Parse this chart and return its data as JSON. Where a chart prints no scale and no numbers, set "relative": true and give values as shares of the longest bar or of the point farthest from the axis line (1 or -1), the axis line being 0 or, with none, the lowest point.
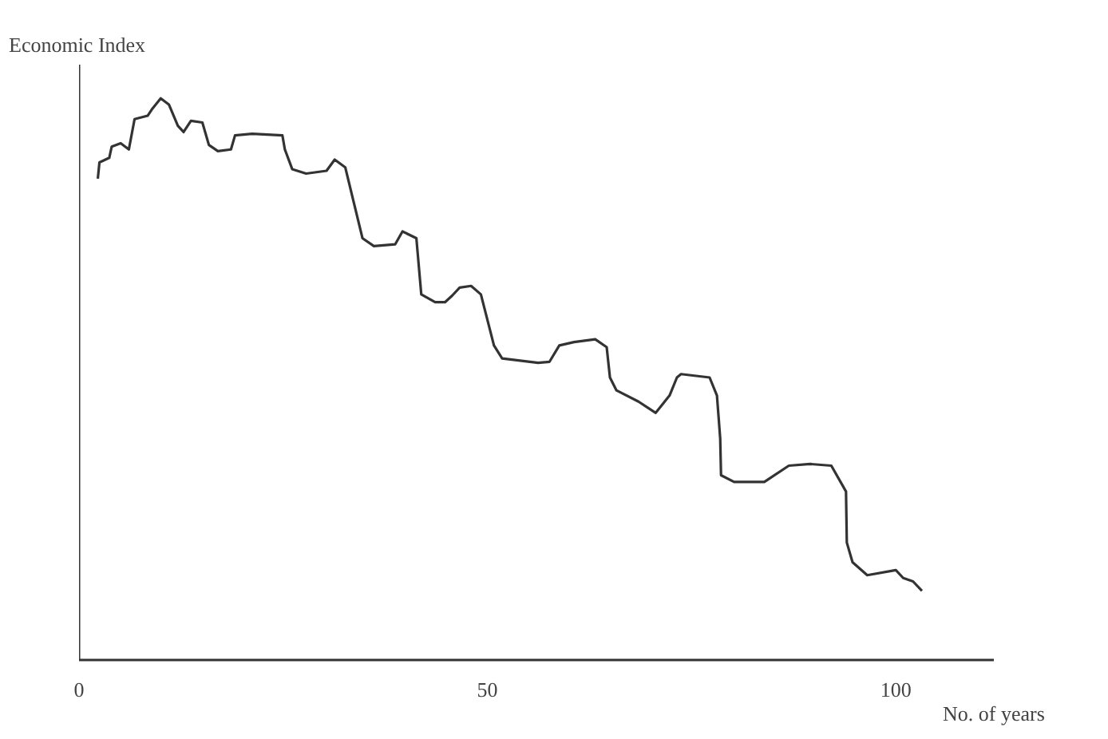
{
  "chart_data": {
    "type": "line",
    "relative": true,
    "xlabel": "No. of years",
    "ylabel": "Economic Index",
    "xlim": [
      0,
      112
    ],
    "xticks": [
      0,
      50,
      100
    ],
    "grid": false,
    "series": [
      {
        "color": "#333333",
        "x": [
          2.3,
          2.5,
          3.7,
          4.0,
          5.1,
          6.1,
          6.8,
          8.4,
          8.9,
          10.0,
          11.0,
          12.1,
          12.8,
          13.7,
          15.1,
          15.9,
          17.0,
          18.6,
          19.1,
          21.2,
          24.9,
          25.2,
          26.1,
          27.8,
          30.3,
          31.3,
          32.6,
          33.5,
          34.7,
          36.1,
          38.7,
          39.6,
          41.3,
          41.9,
          43.6,
          44.8,
          45.7,
          46.6,
          48.0,
          49.2,
          50.8,
          51.8,
          56.2,
          57.6,
          58.8,
          60.6,
          63.2,
          64.6,
          65.0,
          65.8,
          68.5,
          70.6,
          72.3,
          73.2,
          73.7,
          77.2,
          78.1,
          78.5,
          78.6,
          80.2,
          83.9,
          86.9,
          89.5,
          92.1,
          93.9,
          94.0,
          94.7,
          96.5,
          100.0,
          100.9,
          102.1,
          103.2
        ],
        "values": [
          0.857,
          0.886,
          0.894,
          0.914,
          0.92,
          0.909,
          0.963,
          0.969,
          0.98,
          1.0,
          0.989,
          0.951,
          0.94,
          0.96,
          0.957,
          0.917,
          0.906,
          0.909,
          0.934,
          0.937,
          0.934,
          0.909,
          0.874,
          0.866,
          0.871,
          0.891,
          0.877,
          0.823,
          0.751,
          0.737,
          0.74,
          0.763,
          0.751,
          0.651,
          0.637,
          0.637,
          0.649,
          0.663,
          0.666,
          0.651,
          0.56,
          0.537,
          0.529,
          0.531,
          0.56,
          0.566,
          0.571,
          0.557,
          0.503,
          0.48,
          0.46,
          0.44,
          0.471,
          0.503,
          0.509,
          0.503,
          0.471,
          0.394,
          0.329,
          0.317,
          0.317,
          0.346,
          0.349,
          0.346,
          0.3,
          0.209,
          0.174,
          0.151,
          0.16,
          0.146,
          0.14,
          0.123
        ]
      }
    ]
  }
}
